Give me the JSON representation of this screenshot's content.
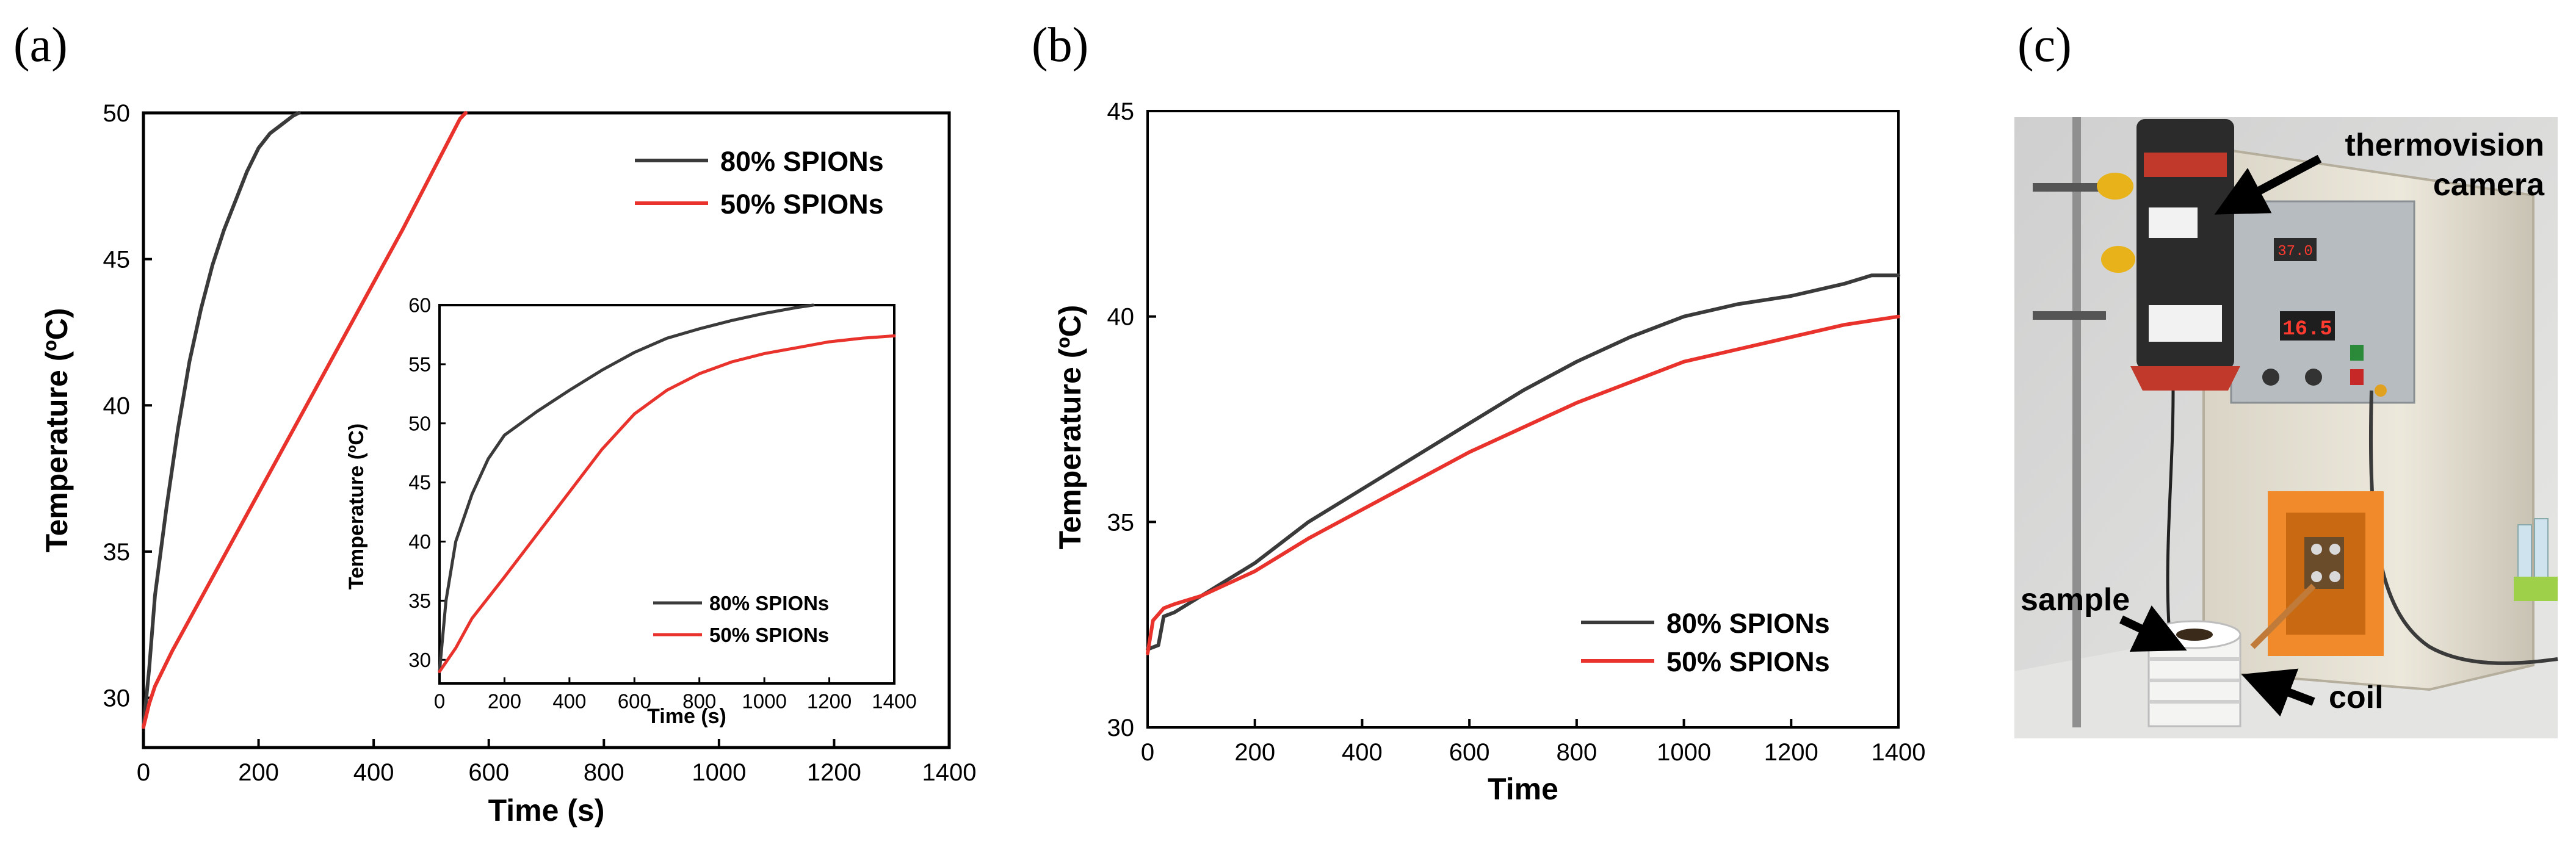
{
  "panel_labels": {
    "a": "(a)",
    "b": "(b)",
    "c": "(c)"
  },
  "colors": {
    "series_80": "#3a3a3a",
    "series_50": "#e8322b"
  },
  "chart_data": [
    {
      "id": "a-main",
      "type": "line",
      "title": "",
      "xlabel": "Time (s)",
      "ylabel": "Temperature (ºC)",
      "xlim": [
        0,
        1400
      ],
      "ylim": [
        28.3,
        50
      ],
      "xticks": [
        0,
        200,
        400,
        600,
        800,
        1000,
        1200,
        1400
      ],
      "yticks": [
        30,
        35,
        40,
        45,
        50
      ],
      "legend": {
        "position": "top-right",
        "entries": [
          "80% SPIONs",
          "50% SPIONs"
        ]
      },
      "series": [
        {
          "name": "80% SPIONs",
          "color": "#3a3a3a",
          "x": [
            0,
            10,
            20,
            40,
            60,
            80,
            100,
            120,
            140,
            160,
            180,
            200,
            220,
            240,
            260,
            270
          ],
          "y": [
            29.0,
            31.0,
            33.5,
            36.5,
            39.2,
            41.5,
            43.3,
            44.8,
            46.0,
            47.0,
            48.0,
            48.8,
            49.3,
            49.6,
            49.9,
            50.0
          ]
        },
        {
          "name": "50% SPIONs",
          "color": "#e8322b",
          "x": [
            0,
            10,
            20,
            50,
            100,
            150,
            200,
            250,
            300,
            350,
            400,
            450,
            500,
            550,
            560
          ],
          "y": [
            29.0,
            29.8,
            30.4,
            31.6,
            33.4,
            35.2,
            37.0,
            38.8,
            40.6,
            42.4,
            44.2,
            46.0,
            47.9,
            49.8,
            50.0
          ]
        }
      ]
    },
    {
      "id": "a-inset",
      "type": "line",
      "title": "",
      "xlabel": "Time (s)",
      "ylabel": "Temperature (ºC)",
      "xlim": [
        0,
        1400
      ],
      "ylim": [
        28,
        60
      ],
      "xticks": [
        0,
        200,
        400,
        600,
        800,
        1000,
        1200,
        1400
      ],
      "yticks": [
        30,
        35,
        40,
        45,
        50,
        55,
        60
      ],
      "legend": {
        "position": "bottom-right",
        "entries": [
          "80% SPIONs",
          "50% SPIONs"
        ]
      },
      "series": [
        {
          "name": "80% SPIONs",
          "color": "#3a3a3a",
          "x": [
            0,
            20,
            50,
            100,
            150,
            200,
            300,
            400,
            500,
            600,
            700,
            800,
            900,
            1000,
            1100,
            1150
          ],
          "y": [
            29.0,
            35.0,
            40.0,
            44.0,
            47.0,
            49.0,
            51.0,
            52.8,
            54.5,
            56.0,
            57.2,
            58.0,
            58.7,
            59.3,
            59.8,
            60.0
          ]
        },
        {
          "name": "50% SPIONs",
          "color": "#e8322b",
          "x": [
            0,
            50,
            100,
            200,
            300,
            400,
            500,
            600,
            700,
            800,
            900,
            1000,
            1100,
            1200,
            1300,
            1400
          ],
          "y": [
            29.0,
            31.0,
            33.5,
            37.0,
            40.6,
            44.2,
            47.8,
            50.8,
            52.8,
            54.2,
            55.2,
            55.9,
            56.4,
            56.9,
            57.2,
            57.4
          ]
        }
      ]
    },
    {
      "id": "b",
      "type": "line",
      "title": "",
      "xlabel": "Time",
      "ylabel": "Temperature (ºC)",
      "xlim": [
        0,
        1400
      ],
      "ylim": [
        30,
        45
      ],
      "xticks": [
        0,
        200,
        400,
        600,
        800,
        1000,
        1200,
        1400
      ],
      "yticks": [
        30,
        35,
        40,
        45
      ],
      "legend": {
        "position": "bottom-right",
        "entries": [
          "80% SPIONs",
          "50% SPIONs"
        ]
      },
      "series": [
        {
          "name": "80% SPIONs",
          "color": "#3a3a3a",
          "x": [
            0,
            20,
            30,
            50,
            100,
            150,
            200,
            300,
            400,
            500,
            600,
            700,
            800,
            900,
            1000,
            1100,
            1200,
            1300,
            1350,
            1400
          ],
          "y": [
            31.9,
            32.0,
            32.7,
            32.8,
            33.2,
            33.6,
            34.0,
            35.0,
            35.8,
            36.6,
            37.4,
            38.2,
            38.9,
            39.5,
            40.0,
            40.3,
            40.5,
            40.8,
            41.0,
            41.0
          ]
        },
        {
          "name": "50% SPIONs",
          "color": "#e8322b",
          "x": [
            0,
            10,
            30,
            50,
            100,
            150,
            200,
            300,
            400,
            500,
            600,
            700,
            800,
            900,
            1000,
            1100,
            1200,
            1300,
            1400
          ],
          "y": [
            31.8,
            32.6,
            32.9,
            33.0,
            33.2,
            33.5,
            33.8,
            34.6,
            35.3,
            36.0,
            36.7,
            37.3,
            37.9,
            38.4,
            38.9,
            39.2,
            39.5,
            39.8,
            40.0
          ]
        }
      ]
    }
  ],
  "photo": {
    "labels": {
      "camera_line1": "thermovision",
      "camera_line2": "camera",
      "sample": "sample",
      "coil": "coil"
    },
    "display_value": "16.5",
    "small_display_value": "37.0"
  }
}
